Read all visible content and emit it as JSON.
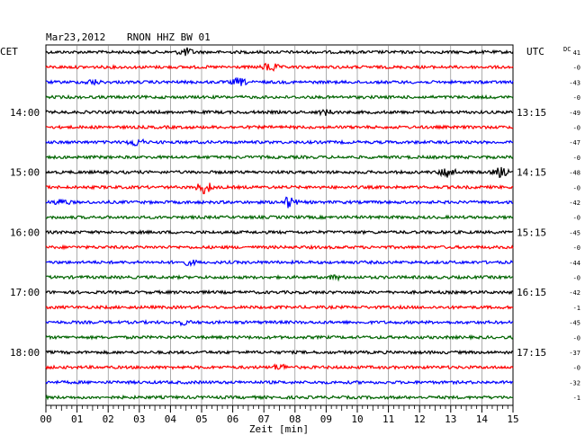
{
  "header": {
    "date": "Mar23,2012",
    "station": "RNON HHZ BW 01",
    "left_tz": "CET",
    "right_tz": "UTC",
    "dc_label": "DC"
  },
  "chart_data": {
    "type": "line",
    "title": "Mar23,2012   RNON HHZ BW 01",
    "xlabel": "Zeit [min]",
    "xlim": [
      0,
      15
    ],
    "x_ticks": [
      "00",
      "01",
      "02",
      "03",
      "04",
      "05",
      "06",
      "07",
      "08",
      "09",
      "10",
      "11",
      "12",
      "13",
      "14",
      "15"
    ],
    "grid": true,
    "trace_colors": [
      "#000000",
      "#ff0000",
      "#0000ff",
      "#006400"
    ],
    "traces": [
      {
        "dc": "41",
        "left": "",
        "right": "",
        "events": [
          {
            "t": 4.5,
            "a": 4
          }
        ]
      },
      {
        "dc": "-0",
        "left": "",
        "right": "",
        "events": [
          {
            "t": 7.2,
            "a": 5
          }
        ]
      },
      {
        "dc": "-43",
        "left": "",
        "right": "",
        "events": [
          {
            "t": 6.2,
            "a": 4
          },
          {
            "t": 1.5,
            "a": 2.5
          }
        ]
      },
      {
        "dc": "-0",
        "left": "",
        "right": "",
        "events": []
      },
      {
        "dc": "-49",
        "left": "14:00",
        "right": "13:15",
        "events": [
          {
            "t": 9.0,
            "a": 2.5
          }
        ]
      },
      {
        "dc": "-0",
        "left": "",
        "right": "",
        "events": []
      },
      {
        "dc": "-47",
        "left": "",
        "right": "",
        "events": [
          {
            "t": 2.9,
            "a": 4
          }
        ]
      },
      {
        "dc": "-0",
        "left": "",
        "right": "",
        "events": []
      },
      {
        "dc": "-48",
        "left": "15:00",
        "right": "14:15",
        "events": [
          {
            "t": 12.9,
            "a": 6
          },
          {
            "t": 14.6,
            "a": 5
          }
        ]
      },
      {
        "dc": "-0",
        "left": "",
        "right": "",
        "events": [
          {
            "t": 5.1,
            "a": 7
          }
        ]
      },
      {
        "dc": "-42",
        "left": "",
        "right": "",
        "events": [
          {
            "t": 7.8,
            "a": 6
          },
          {
            "t": 0.5,
            "a": 3
          }
        ]
      },
      {
        "dc": "-0",
        "left": "",
        "right": "",
        "events": []
      },
      {
        "dc": "-45",
        "left": "16:00",
        "right": "15:15",
        "events": []
      },
      {
        "dc": "-0",
        "left": "",
        "right": "",
        "events": []
      },
      {
        "dc": "-44",
        "left": "",
        "right": "",
        "events": [
          {
            "t": 4.6,
            "a": 2.5
          }
        ]
      },
      {
        "dc": "-0",
        "left": "",
        "right": "",
        "events": [
          {
            "t": 9.3,
            "a": 2
          }
        ]
      },
      {
        "dc": "-42",
        "left": "17:00",
        "right": "16:15",
        "events": []
      },
      {
        "dc": "-1",
        "left": "",
        "right": "",
        "events": []
      },
      {
        "dc": "-45",
        "left": "",
        "right": "",
        "events": [
          {
            "t": 4.4,
            "a": 2
          }
        ]
      },
      {
        "dc": "-0",
        "left": "",
        "right": "",
        "events": []
      },
      {
        "dc": "-37",
        "left": "18:00",
        "right": "17:15",
        "events": []
      },
      {
        "dc": "-0",
        "left": "",
        "right": "",
        "events": [
          {
            "t": 7.5,
            "a": 3
          }
        ]
      },
      {
        "dc": "-32",
        "left": "",
        "right": "",
        "events": []
      },
      {
        "dc": "-1",
        "left": "",
        "right": "",
        "events": []
      }
    ]
  }
}
